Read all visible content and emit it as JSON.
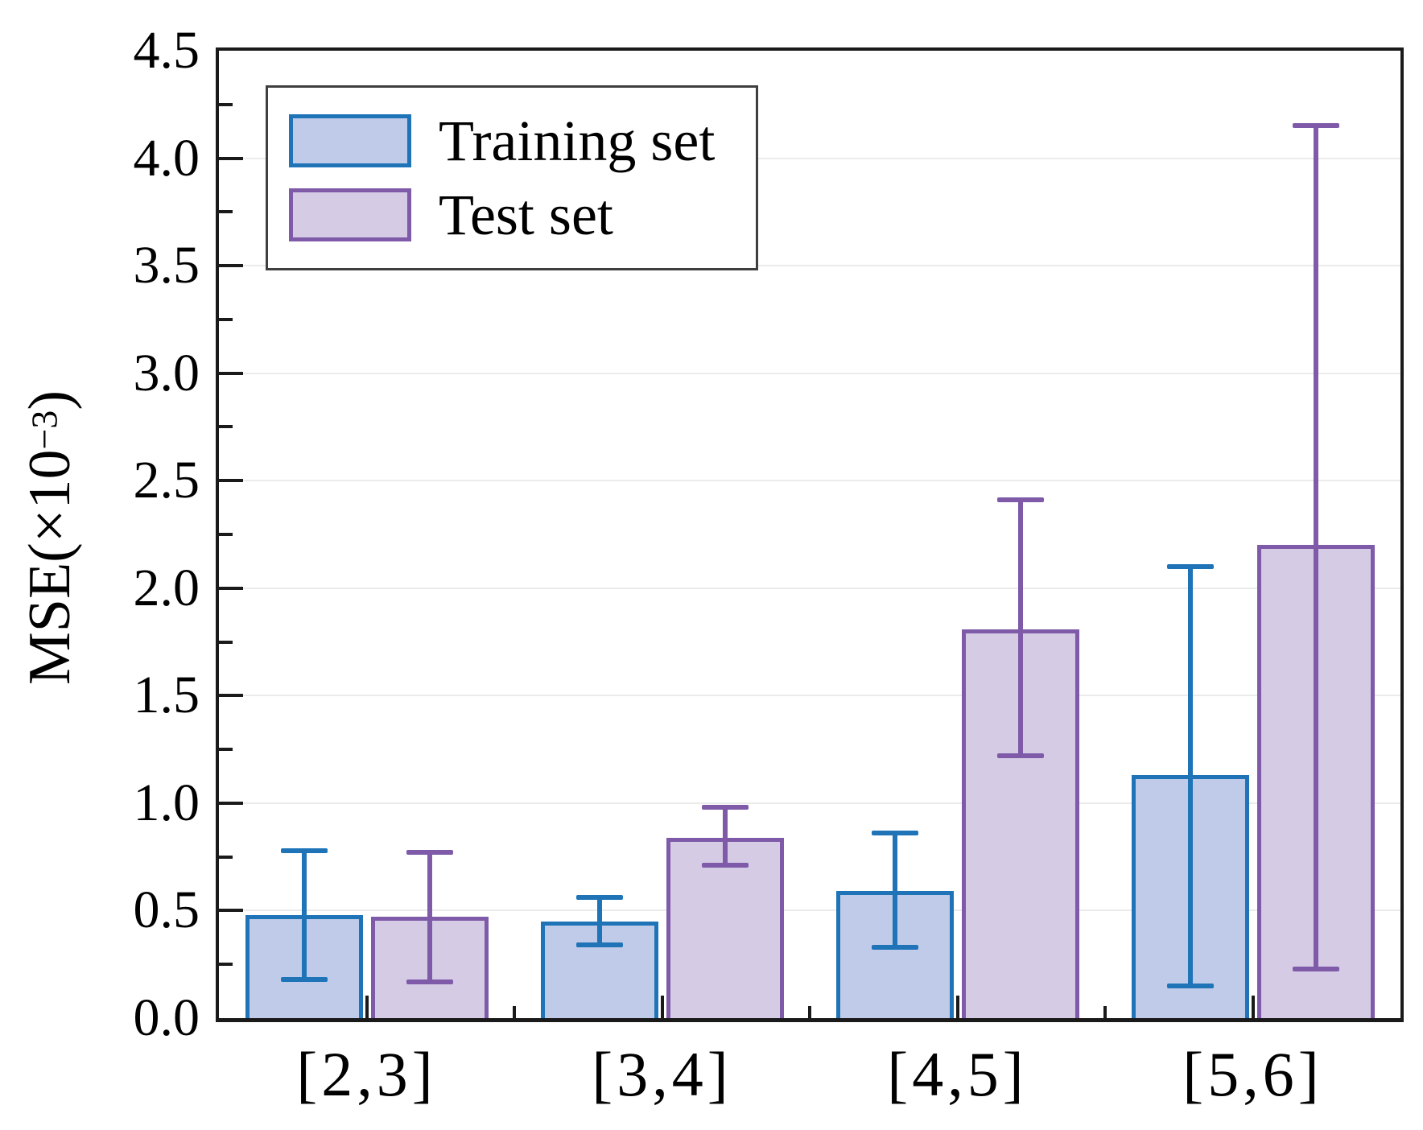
{
  "figure": {
    "background": "#ffffff",
    "grid_color": "#ebebeb",
    "axis_color": "#1a1a1a",
    "legend_border_color": "#3f3f3f"
  },
  "chart_data": {
    "type": "bar",
    "title": "",
    "categories": [
      "[2,3]",
      "[3,4]",
      "[4,5]",
      "[5,6]"
    ],
    "series": [
      {
        "name": "Training set",
        "fill": "#bfcbe8",
        "stroke": "#1f74b8",
        "values": [
          0.48,
          0.45,
          0.59,
          1.13
        ],
        "error_top": [
          0.78,
          0.56,
          0.86,
          2.1
        ],
        "error_bottom": [
          0.18,
          0.34,
          0.33,
          0.15
        ]
      },
      {
        "name": "Test set",
        "fill": "#d5cbe5",
        "stroke": "#7e5aa8",
        "values": [
          0.47,
          0.84,
          1.81,
          2.2
        ],
        "error_top": [
          0.77,
          0.98,
          2.41,
          4.15
        ],
        "error_bottom": [
          0.17,
          0.71,
          1.22,
          0.23
        ]
      }
    ],
    "xlabel": "",
    "ylabel_prefix": "MSE(×10",
    "ylabel_exponent": "−3",
    "ylabel_suffix": ")",
    "ylim": [
      0,
      4.5
    ],
    "ytick_step": 0.5,
    "ytick_minor_step": 0.25,
    "yticks": [
      "0.0",
      "0.5",
      "1.0",
      "1.5",
      "2.0",
      "2.5",
      "3.0",
      "3.5",
      "4.0",
      "4.5"
    ],
    "grid": "horizontal-major",
    "legend_position": "upper-left"
  }
}
